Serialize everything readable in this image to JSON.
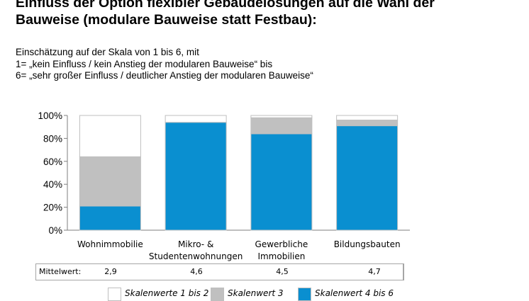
{
  "title": "Einfluss der Option flexibler Gebäudelösungen auf die Wahl der\nBauweise (modulare Bauweise statt Festbau):",
  "subtitle_lines": [
    "Einschätzung auf der Skala von 1 bis 6, mit",
    "1= „kein Einfluss / kein Anstieg der modularen Bauweise“ bis",
    "6= „sehr großer Einfluss / deutlicher Anstieg der modularen Bauweise“"
  ],
  "chart_data": {
    "type": "bar",
    "stacked": true,
    "categories": [
      "Wohnimmobilie",
      "Mikro- &\nStudentenwohnungen",
      "Gewerbliche\nImmobilien",
      "Bildungsbauten"
    ],
    "series": [
      {
        "name": "Skalenwert 4 bis 6",
        "color": "#0a8fd0",
        "values": [
          21,
          94,
          84,
          91
        ]
      },
      {
        "name": "Skalenwert 3",
        "color": "#c0c0c0",
        "values": [
          43,
          0,
          14,
          5
        ]
      },
      {
        "name": "Skalenwerte 1 bis 2",
        "color": "#ffffff",
        "values": [
          36,
          6,
          2,
          4
        ]
      }
    ],
    "yticks": [
      "0%",
      "20%",
      "40%",
      "60%",
      "80%",
      "100%"
    ],
    "ylim": [
      0,
      100
    ],
    "grid": false
  },
  "stats": {
    "label": "Mittelwert:",
    "values": [
      "2,9",
      "4,6",
      "4,5",
      "4,7"
    ]
  },
  "legend": [
    {
      "label": "Skalenwerte 1 bis 2",
      "color": "#ffffff"
    },
    {
      "label": "Skalenwert 3",
      "color": "#c0c0c0"
    },
    {
      "label": "Skalenwert 4 bis 6",
      "color": "#0a8fd0"
    }
  ]
}
